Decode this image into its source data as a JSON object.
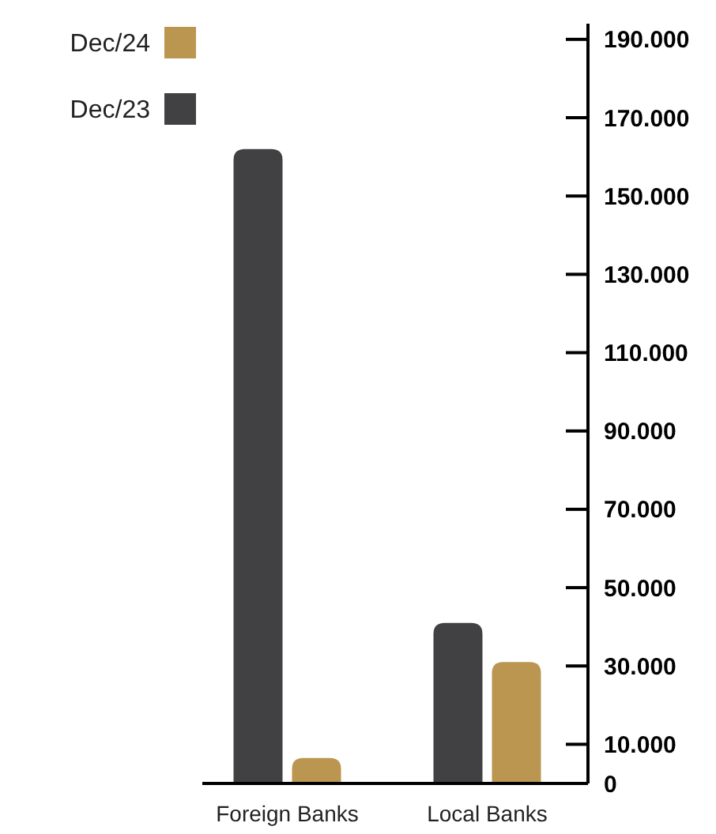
{
  "chart_data": {
    "type": "bar",
    "categories": [
      "Foreign Banks",
      "Local Banks"
    ],
    "series": [
      {
        "name": "Dec/23",
        "color": "#414042",
        "values": [
          162000,
          41000
        ]
      },
      {
        "name": "Dec/24",
        "color": "#bb9650",
        "values": [
          6500,
          31000
        ]
      }
    ],
    "ylim": [
      0,
      194000
    ],
    "yticks": [
      0,
      {
        "value": 10000,
        "label": "10.000"
      },
      {
        "value": 30000,
        "label": "30.000"
      },
      {
        "value": 50000,
        "label": "50.000"
      },
      {
        "value": 70000,
        "label": "70.000"
      },
      {
        "value": 90000,
        "label": "90.000"
      },
      {
        "value": 110000,
        "label": "110.000"
      },
      {
        "value": 130000,
        "label": "130.000"
      },
      {
        "value": 150000,
        "label": "150.000"
      },
      {
        "value": 170000,
        "label": "170.000"
      },
      {
        "value": 190000,
        "label": "190.000"
      }
    ],
    "legend": "top left",
    "grid": false
  }
}
